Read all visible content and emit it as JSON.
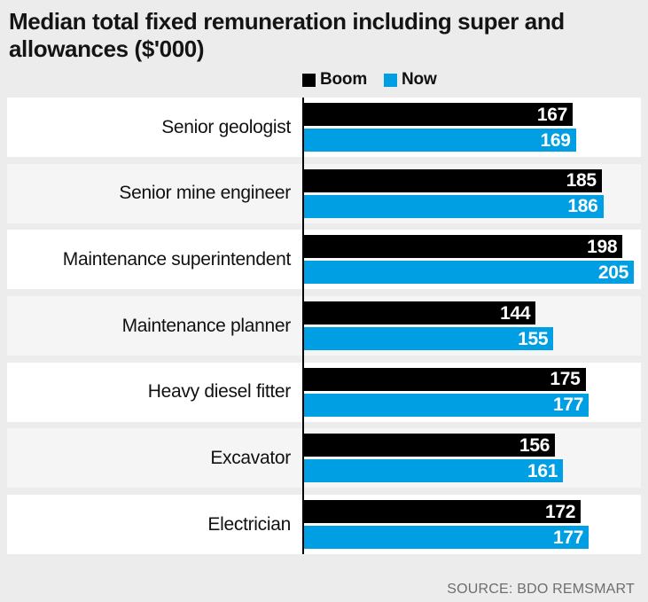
{
  "title": "Median total fixed remuneration including super and allowances ($'000)",
  "source": "SOURCE: BDO REMSMART",
  "colors": {
    "page_background": "#ececec",
    "row_plain": "#ffffff",
    "row_shaded": "#f5f5f6",
    "boom": "#000000",
    "now": "#009fe3",
    "axis": "#000000",
    "source_text": "#6e6e6e"
  },
  "chart_data": {
    "type": "bar",
    "orientation": "horizontal",
    "title": "Median total fixed remuneration including super and allowances ($'000)",
    "xlabel": "",
    "ylabel": "",
    "axis_max": 205,
    "grid": false,
    "legend_position": "top",
    "value_labels": "inside-end",
    "categories": [
      "Senior geologist",
      "Senior mine engineer",
      "Maintenance superintendent",
      "Maintenance planner",
      "Heavy diesel fitter",
      "Excavator",
      "Electrician"
    ],
    "series": [
      {
        "name": "Boom",
        "color": "#000000",
        "values": [
          167,
          185,
          198,
          144,
          175,
          156,
          172
        ]
      },
      {
        "name": "Now",
        "color": "#009fe3",
        "values": [
          169,
          186,
          205,
          155,
          177,
          161,
          177
        ]
      }
    ]
  }
}
